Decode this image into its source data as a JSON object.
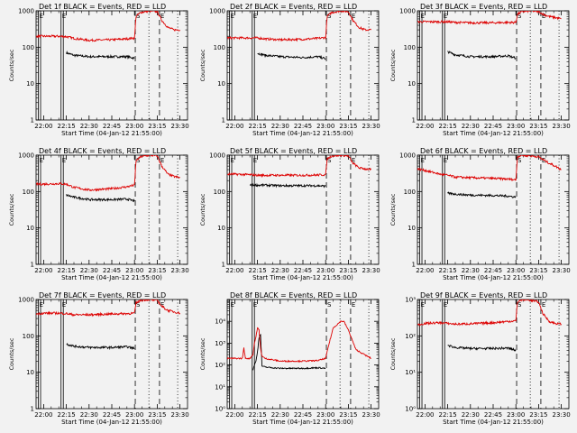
{
  "time_axis": {
    "tick_labels": [
      "22:00",
      "22:15",
      "22:30",
      "22:45",
      "23:00",
      "23:15",
      "23:30"
    ],
    "tick_minutes": [
      0,
      15,
      30,
      45,
      60,
      75,
      90
    ],
    "xlim_minutes": [
      -5,
      95
    ],
    "xlabel": "Start Time (04-Jan-12 21:55:00)"
  },
  "y_axis_label": "Counts/sec",
  "markers": [
    {
      "label": "E",
      "minutes": -3.5,
      "style": "solid"
    },
    {
      "label": "E",
      "minutes": 11.5,
      "style": "solid"
    },
    {
      "label": "S",
      "minutes": 60.5,
      "style": "dashed"
    },
    {
      "label": "",
      "minutes": 69.5,
      "style": "dotted"
    },
    {
      "label": "E",
      "minutes": 76.5,
      "style": "dashed"
    },
    {
      "label": "",
      "minutes": 88.5,
      "style": "dotted"
    }
  ],
  "colors": {
    "events": "#000000",
    "lld": "#dd0000",
    "background": "#f2f2f2"
  },
  "chart_data": [
    {
      "type": "line",
      "title": "Det 1f BLACK = Events, RED = LLD",
      "ylabel": "Counts/sec",
      "xlabel": "Start Time (04-Jan-12 21:55:00)",
      "yscale": "log",
      "ylim": [
        1,
        1000
      ],
      "y_tick_labels": [
        "1",
        "10",
        "100",
        "1000"
      ],
      "x": [
        -5,
        0,
        10,
        15,
        20,
        30,
        45,
        55,
        60,
        61,
        64,
        70,
        75,
        78,
        82,
        86,
        90
      ],
      "series": [
        {
          "name": "Events",
          "color": "#000000",
          "values": [
            null,
            null,
            null,
            70,
            60,
            55,
            55,
            55,
            50,
            null,
            null,
            null,
            null,
            null,
            null,
            null,
            null
          ]
        },
        {
          "name": "LLD",
          "color": "#dd0000",
          "values": [
            200,
            200,
            200,
            195,
            175,
            155,
            160,
            170,
            180,
            700,
            900,
            1000,
            950,
            550,
            350,
            300,
            300
          ]
        }
      ]
    },
    {
      "type": "line",
      "title": "Det 2f BLACK = Events, RED = LLD",
      "ylabel": "Counts/sec",
      "xlabel": "Start Time (04-Jan-12 21:55:00)",
      "yscale": "log",
      "ylim": [
        1,
        1000
      ],
      "y_tick_labels": [
        "1",
        "10",
        "100",
        "1000"
      ],
      "x": [
        -5,
        0,
        10,
        15,
        20,
        30,
        45,
        55,
        60,
        61,
        64,
        70,
        75,
        78,
        82,
        86,
        90
      ],
      "series": [
        {
          "name": "Events",
          "color": "#000000",
          "values": [
            null,
            null,
            null,
            68,
            60,
            55,
            52,
            55,
            48,
            null,
            null,
            null,
            null,
            null,
            null,
            null,
            null
          ]
        },
        {
          "name": "LLD",
          "color": "#dd0000",
          "values": [
            180,
            180,
            180,
            180,
            170,
            160,
            165,
            175,
            185,
            700,
            900,
            1000,
            950,
            550,
            350,
            300,
            300
          ]
        }
      ]
    },
    {
      "type": "line",
      "title": "Det 3f BLACK = Events, RED = LLD",
      "ylabel": "Counts/sec",
      "xlabel": "Start Time (04-Jan-12 21:55:00)",
      "yscale": "log",
      "ylim": [
        1,
        1000
      ],
      "y_tick_labels": [
        "1",
        "10",
        "100",
        "1000"
      ],
      "x": [
        -5,
        0,
        10,
        15,
        20,
        30,
        45,
        55,
        60,
        61,
        64,
        70,
        75,
        78,
        82,
        86,
        90
      ],
      "series": [
        {
          "name": "Events",
          "color": "#000000",
          "values": [
            null,
            null,
            null,
            75,
            62,
            55,
            55,
            58,
            50,
            null,
            null,
            null,
            null,
            null,
            null,
            null,
            null
          ]
        },
        {
          "name": "LLD",
          "color": "#dd0000",
          "values": [
            500,
            500,
            500,
            500,
            480,
            470,
            470,
            480,
            480,
            800,
            950,
            1000,
            950,
            800,
            700,
            650,
            600
          ]
        }
      ]
    },
    {
      "type": "line",
      "title": "Det 4f BLACK = Events, RED = LLD",
      "ylabel": "Counts/sec",
      "xlabel": "Start Time (04-Jan-12 21:55:00)",
      "yscale": "log",
      "ylim": [
        1,
        1000
      ],
      "y_tick_labels": [
        "1",
        "10",
        "100",
        "1000"
      ],
      "x": [
        -5,
        0,
        10,
        15,
        20,
        30,
        45,
        55,
        60,
        61,
        64,
        70,
        75,
        78,
        82,
        86,
        90
      ],
      "series": [
        {
          "name": "Events",
          "color": "#000000",
          "values": [
            null,
            null,
            null,
            80,
            70,
            60,
            60,
            62,
            55,
            null,
            null,
            null,
            null,
            null,
            null,
            null,
            null
          ]
        },
        {
          "name": "LLD",
          "color": "#dd0000",
          "values": [
            160,
            160,
            165,
            160,
            130,
            110,
            120,
            135,
            150,
            700,
            900,
            1000,
            950,
            500,
            300,
            260,
            240
          ]
        }
      ]
    },
    {
      "type": "line",
      "title": "Det 5f BLACK = Events, RED = LLD",
      "ylabel": "Counts/sec",
      "xlabel": "Start Time (04-Jan-12 21:55:00)",
      "yscale": "log",
      "ylim": [
        1,
        1000
      ],
      "y_tick_labels": [
        "1",
        "10",
        "100",
        "1000"
      ],
      "x": [
        -5,
        0,
        10,
        15,
        20,
        30,
        45,
        55,
        60,
        61,
        64,
        70,
        75,
        78,
        82,
        86,
        90
      ],
      "series": [
        {
          "name": "Events",
          "color": "#000000",
          "values": [
            null,
            null,
            150,
            150,
            150,
            145,
            145,
            145,
            140,
            null,
            null,
            null,
            null,
            null,
            null,
            null,
            null
          ]
        },
        {
          "name": "LLD",
          "color": "#dd0000",
          "values": [
            300,
            300,
            290,
            280,
            280,
            280,
            280,
            285,
            290,
            800,
            950,
            1000,
            950,
            600,
            450,
            420,
            400
          ]
        }
      ]
    },
    {
      "type": "line",
      "title": "Det 6f BLACK = Events, RED = LLD",
      "ylabel": "Counts/sec",
      "xlabel": "Start Time (04-Jan-12 21:55:00)",
      "yscale": "log",
      "ylim": [
        1,
        1000
      ],
      "y_tick_labels": [
        "1",
        "10",
        "100",
        "1000"
      ],
      "x": [
        -5,
        0,
        10,
        15,
        20,
        30,
        45,
        55,
        60,
        61,
        64,
        70,
        75,
        78,
        82,
        86,
        90
      ],
      "series": [
        {
          "name": "Events",
          "color": "#000000",
          "values": [
            null,
            null,
            null,
            90,
            85,
            80,
            78,
            75,
            70,
            null,
            null,
            null,
            null,
            null,
            null,
            null,
            null
          ]
        },
        {
          "name": "LLD",
          "color": "#dd0000",
          "values": [
            420,
            380,
            300,
            280,
            250,
            240,
            230,
            220,
            210,
            900,
            1000,
            950,
            900,
            750,
            600,
            500,
            400
          ]
        }
      ]
    },
    {
      "type": "line",
      "title": "Det 7f BLACK = Events, RED = LLD",
      "ylabel": "Counts/sec",
      "xlabel": "Start Time (04-Jan-12 21:55:00)",
      "yscale": "log",
      "ylim": [
        1,
        1000
      ],
      "y_tick_labels": [
        "1",
        "10",
        "100",
        "1000"
      ],
      "x": [
        -5,
        0,
        10,
        15,
        20,
        30,
        45,
        55,
        60,
        61,
        64,
        70,
        75,
        78,
        82,
        86,
        90
      ],
      "series": [
        {
          "name": "Events",
          "color": "#000000",
          "values": [
            null,
            null,
            null,
            60,
            52,
            48,
            48,
            50,
            45,
            null,
            null,
            null,
            null,
            null,
            null,
            null,
            null
          ]
        },
        {
          "name": "LLD",
          "color": "#dd0000",
          "values": [
            400,
            420,
            420,
            410,
            380,
            380,
            400,
            410,
            420,
            800,
            950,
            1000,
            950,
            650,
            500,
            460,
            420
          ]
        }
      ]
    },
    {
      "type": "line",
      "title": "Det 8f BLACK = Events, RED = LLD",
      "ylabel": "Counts/sec",
      "xlabel": "Start Time (04-Jan-12 21:55:00)",
      "yscale": "log",
      "ylim": [
        1,
        100000
      ],
      "y_tick_labels": [
        "10⁰",
        "10¹",
        "10²",
        "10³",
        "10⁴"
      ],
      "x": [
        -5,
        0,
        5,
        6,
        7,
        10,
        12,
        13,
        14,
        15,
        16,
        17,
        18,
        20,
        30,
        45,
        55,
        60,
        62,
        65,
        70,
        72,
        75,
        80,
        90
      ],
      "series": [
        {
          "name": "Events",
          "color": "#000000",
          "values": [
            null,
            null,
            null,
            null,
            null,
            null,
            60,
            100,
            150,
            400,
            1800,
            2500,
            90,
            80,
            70,
            70,
            75,
            70,
            null,
            null,
            null,
            null,
            null,
            null,
            null
          ]
        },
        {
          "name": "LLD",
          "color": "#dd0000",
          "values": [
            200,
            200,
            200,
            600,
            200,
            200,
            300,
            1000,
            2000,
            5000,
            4000,
            600,
            250,
            200,
            150,
            150,
            160,
            200,
            800,
            5000,
            10000,
            10000,
            4000,
            500,
            200
          ]
        }
      ]
    },
    {
      "type": "line",
      "title": "Det 9f BLACK = Events, RED = LLD",
      "ylabel": "Counts/sec",
      "xlabel": "Start Time (04-Jan-12 21:55:00)",
      "yscale": "log",
      "ylim": [
        1,
        1000
      ],
      "y_tick_labels": [
        "10⁰",
        "10¹",
        "10²",
        "10³"
      ],
      "x": [
        -5,
        0,
        10,
        15,
        20,
        30,
        45,
        55,
        60,
        61,
        64,
        70,
        75,
        78,
        82,
        86,
        90
      ],
      "series": [
        {
          "name": "Events",
          "color": "#000000",
          "values": [
            null,
            null,
            null,
            55,
            48,
            45,
            45,
            46,
            40,
            null,
            null,
            null,
            null,
            null,
            null,
            null,
            null
          ]
        },
        {
          "name": "LLD",
          "color": "#dd0000",
          "values": [
            200,
            220,
            230,
            220,
            210,
            215,
            230,
            250,
            260,
            850,
            1000,
            950,
            850,
            400,
            250,
            220,
            210
          ]
        }
      ]
    }
  ]
}
